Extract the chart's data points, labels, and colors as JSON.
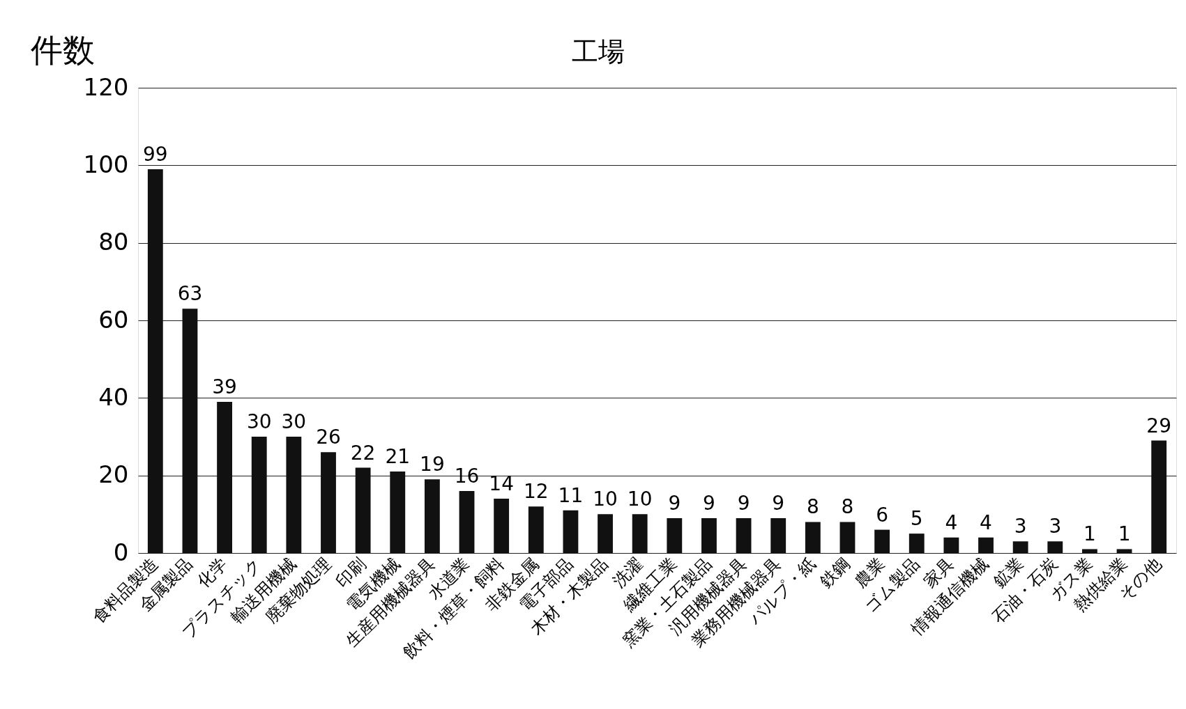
{
  "chart_data": {
    "type": "bar",
    "title": "工場",
    "ylabel": "件数",
    "categories": [
      "食料品製造",
      "金属製品",
      "化学",
      "プラスチック",
      "輸送用機械",
      "廃棄物処理",
      "印刷",
      "電気機械",
      "生産用機械器具",
      "水道業",
      "飲料・煙草・飼料",
      "非鉄金属",
      "電子部品",
      "木材・木製品",
      "洗濯",
      "繊維工業",
      "窯業・土石製品",
      "汎用機械器具",
      "業務用機械器具",
      "パルプ・紙",
      "鉄鋼",
      "農業",
      "ゴム製品",
      "家具",
      "情報通信機械",
      "鉱業",
      "石油・石炭",
      "ガス業",
      "熱供給業",
      "その他"
    ],
    "values": [
      99,
      63,
      39,
      30,
      30,
      26,
      22,
      21,
      19,
      16,
      14,
      12,
      11,
      10,
      10,
      9,
      9,
      9,
      9,
      8,
      8,
      6,
      5,
      4,
      4,
      3,
      3,
      1,
      1,
      29
    ],
    "color": "#111111",
    "ylim": [
      0,
      120
    ],
    "yticks": [
      0,
      20,
      40,
      60,
      80,
      100,
      120
    ],
    "grid": "y",
    "data_labels": true
  }
}
